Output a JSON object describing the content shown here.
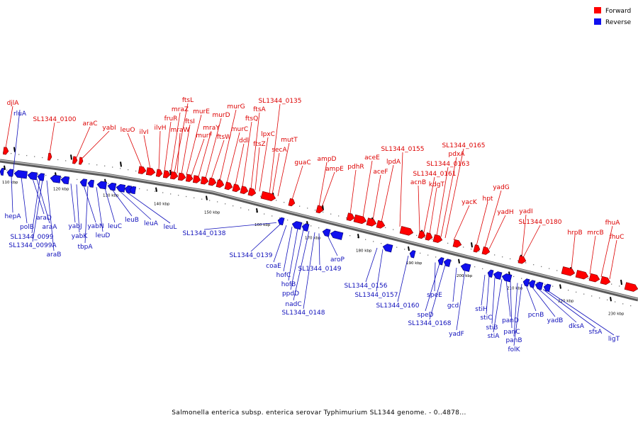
{
  "legend": {
    "forward_label": "Forward",
    "reverse_label": "Reverse",
    "forward_color": "#ff0000",
    "reverse_color": "#1010ee"
  },
  "caption": "Salmonella enterica subsp. enterica serovar Typhimurium SL1344 genome. - 0..4878...",
  "scale_ticks": [
    "110 kbp",
    "120 kbp",
    "130 kbp",
    "140 kbp",
    "150 kbp",
    "160 kbp",
    "170 kbp",
    "180 kbp",
    "190 kbp",
    "200 kbp",
    "210 kbp",
    "220 kbp",
    "230 kbp"
  ],
  "forward_genes": [
    "djlA",
    "SL1344_0100",
    "araC",
    "yabI",
    "leuO",
    "ilvI",
    "ilvH",
    "fruR",
    "mraZ",
    "ftsL",
    "mraW",
    "ftsI",
    "murE",
    "murF",
    "mraY",
    "murD",
    "ftsW",
    "murG",
    "murC",
    "ddl",
    "ftsQ",
    "ftsA",
    "ftsZ",
    "lpxC",
    "SL1344_0135",
    "secA",
    "mutT",
    "guaC",
    "ampD",
    "ampE",
    "pdhR",
    "aceE",
    "aceF",
    "lpdA",
    "SL1344_0155",
    "acnB",
    "SL1344_0161",
    "kdgT",
    "SL1344_0163",
    "pdxA",
    "SL1344_0165",
    "yacK",
    "hpt",
    "yadG",
    "yadH",
    "yadI",
    "SL1344_0180",
    "hrpB",
    "mrcB",
    "fhuA",
    "fhuC"
  ],
  "reverse_genes": [
    "rluA",
    "hepA",
    "polB",
    "araD",
    "araA",
    "SL1344_0099",
    "SL1344_0099A",
    "araB",
    "yabJ",
    "yabK",
    "yabN",
    "tbpA",
    "leuD",
    "leuC",
    "leuB",
    "leuA",
    "leuL",
    "SL1344_0138",
    "SL1344_0139",
    "coaE",
    "hofC",
    "hofB",
    "ppdD",
    "nadC",
    "SL1344_0148",
    "SL1344_0149",
    "aroP",
    "SL1344_0156",
    "SL1344_0157",
    "SL1344_0160",
    "speE",
    "speD",
    "SL1344_0168",
    "gcd",
    "yadF",
    "stiH",
    "stiC",
    "stiB",
    "stiA",
    "panD",
    "panC",
    "panB",
    "folK",
    "pcnB",
    "yadB",
    "dksA",
    "sfsA",
    "ligT"
  ]
}
